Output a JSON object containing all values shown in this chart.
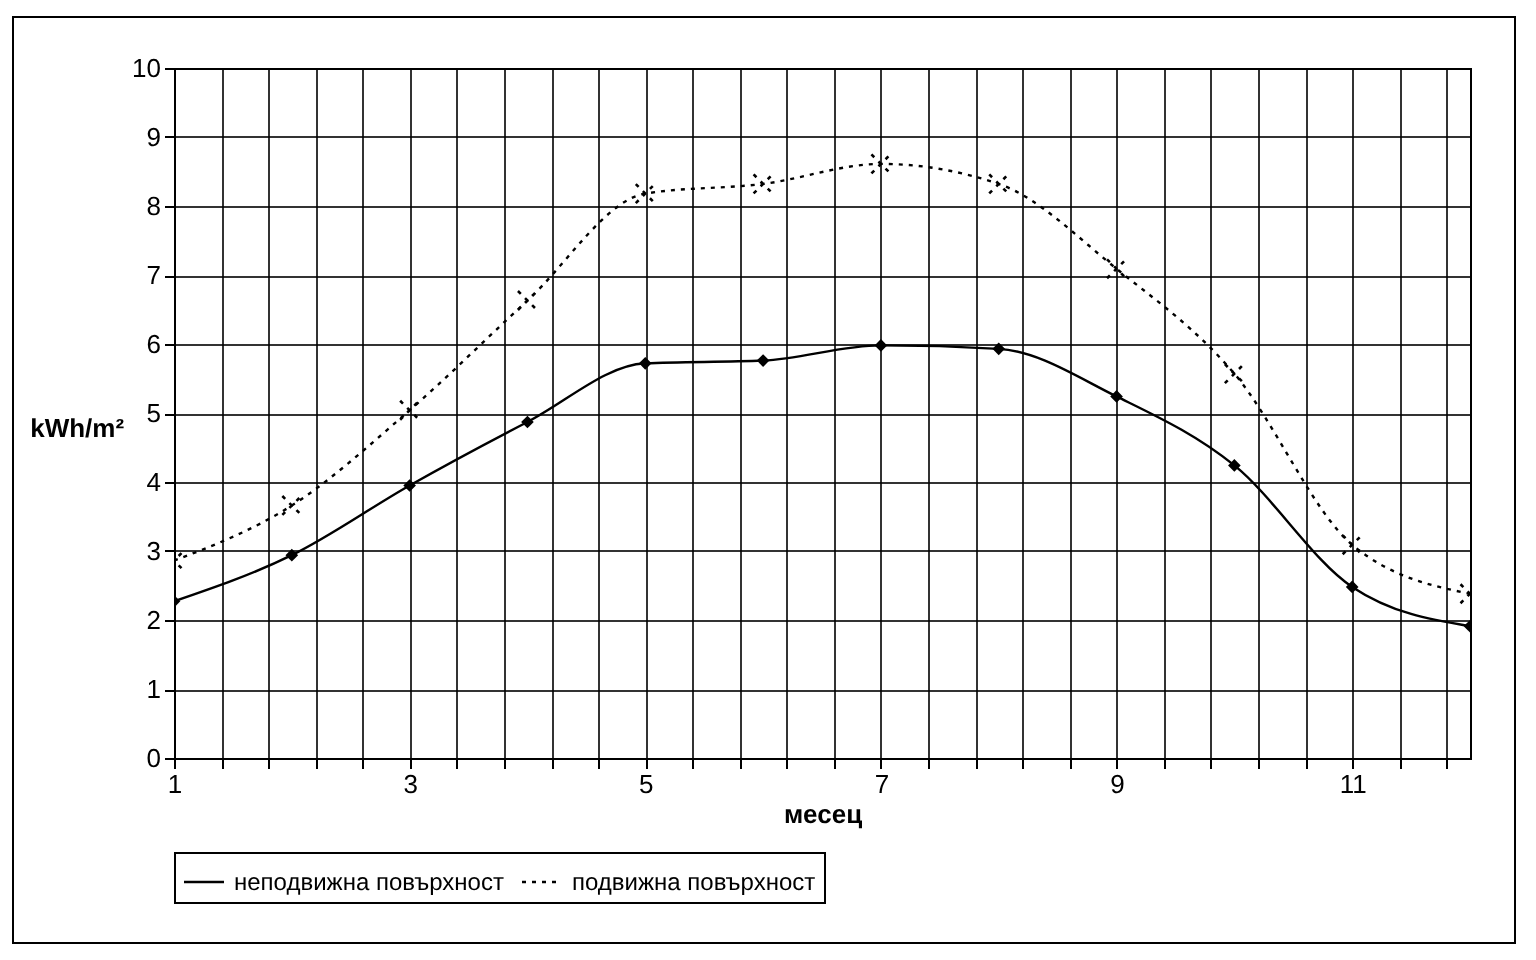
{
  "chart_data": {
    "type": "line",
    "xlabel": "месец",
    "ylabel": "kWh/m²",
    "x": [
      1,
      2,
      3,
      4,
      5,
      6,
      7,
      8,
      9,
      10,
      11,
      12
    ],
    "series": [
      {
        "name": "неподвижна повърхност",
        "color": "#000000",
        "marker": "diamond",
        "line_style": "solid",
        "values": [
          2.27,
          2.94,
          3.95,
          4.87,
          5.72,
          5.76,
          5.98,
          5.93,
          5.24,
          4.24,
          2.48,
          1.91
        ]
      },
      {
        "name": "подвижна повърхност",
        "color": "#000000",
        "marker": "cross",
        "line_style": "dotted",
        "values": [
          2.86,
          3.66,
          5.04,
          6.63,
          8.18,
          8.32,
          8.61,
          8.32,
          7.09,
          5.57,
          3.09,
          2.38
        ]
      }
    ],
    "xlim": [
      1,
      12
    ],
    "xticks": [
      1,
      {
        "value": 1.4,
        "label": null
      },
      {
        "value": 1.8,
        "label": null
      },
      {
        "value": 2.2,
        "label": null
      },
      {
        "value": 2.6,
        "label": null
      },
      3,
      {
        "value": 3.4,
        "label": null
      },
      {
        "value": 3.8,
        "label": null
      },
      {
        "value": 4.2,
        "label": null
      },
      {
        "value": 4.6,
        "label": null
      },
      5,
      {
        "value": 5.4,
        "label": null
      },
      {
        "value": 5.8,
        "label": null
      },
      {
        "value": 6.2,
        "label": null
      },
      {
        "value": 6.6,
        "label": null
      },
      7,
      {
        "value": 7.4,
        "label": null
      },
      {
        "value": 7.8,
        "label": null
      },
      {
        "value": 8.2,
        "label": null
      },
      {
        "value": 8.6,
        "label": null
      },
      9,
      {
        "value": 9.4,
        "label": null
      },
      {
        "value": 9.8,
        "label": null
      },
      {
        "value": 10.2,
        "label": null
      },
      {
        "value": 10.6,
        "label": null
      },
      11,
      {
        "value": 11.4,
        "label": null
      },
      {
        "value": 11.8,
        "label": null
      }
    ],
    "ylim": [
      0,
      10
    ],
    "yticks": [
      0,
      1,
      2,
      3,
      4,
      5,
      6,
      7,
      8,
      9,
      10
    ],
    "grid": true,
    "legend": "bottom"
  }
}
